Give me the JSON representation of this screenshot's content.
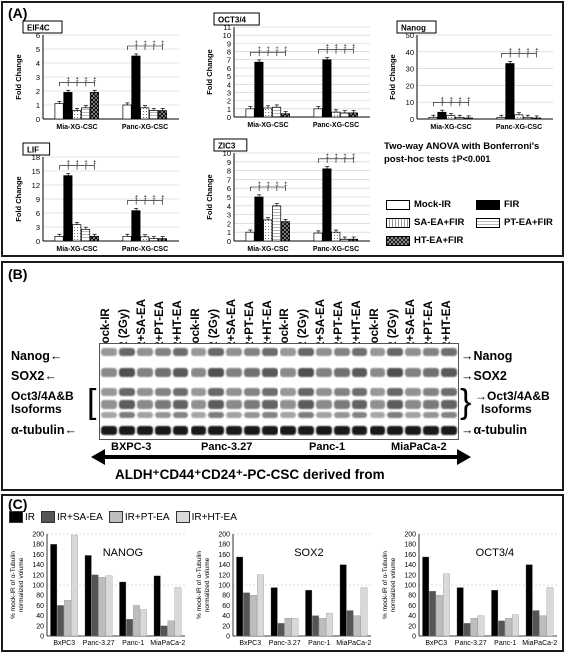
{
  "panelA": {
    "label": "(A)",
    "stat_note_line1": "Two-way ANOVA with Bonferroni's",
    "stat_note_line2": "post-hoc tests",
    "stat_note_line3": "‡P<0.001",
    "legend": [
      {
        "label": "Mock-IR",
        "color": "#ffffff",
        "pattern": "plain"
      },
      {
        "label": "FIR",
        "color": "#000000",
        "pattern": "plain"
      },
      {
        "label": "SA-EA+FIR",
        "color": "#ffffff",
        "pattern": "plain"
      },
      {
        "label": "PT-EA+FIR",
        "color": "#ffffff",
        "pattern": "plain"
      },
      {
        "label": "HT-EA+FIR",
        "color": "#555555",
        "pattern": "checker"
      }
    ]
  },
  "chart_data": [
    {
      "type": "bar",
      "title": "EIF4C",
      "ylabel": "Fold  Change",
      "ylim": [
        0,
        6
      ],
      "yticks": [
        0,
        1,
        2,
        3,
        4,
        5,
        6
      ],
      "categories": [
        "Mia-XG-CSC",
        "Panc-XG-CSC"
      ],
      "series": [
        {
          "name": "Mock-IR",
          "values": [
            1.1,
            1.0
          ]
        },
        {
          "name": "FIR",
          "values": [
            1.9,
            4.5
          ]
        },
        {
          "name": "SA-EA+FIR",
          "values": [
            0.6,
            0.8
          ]
        },
        {
          "name": "PT-EA+FIR",
          "values": [
            0.8,
            0.6
          ]
        },
        {
          "name": "HT-EA+FIR",
          "values": [
            1.9,
            0.6
          ]
        }
      ]
    },
    {
      "type": "bar",
      "title": "OCT3/4",
      "ylabel": "Fold  Change",
      "ylim": [
        0,
        11
      ],
      "yticks": [
        0,
        1,
        2,
        3,
        4,
        5,
        6,
        7,
        8,
        9,
        10,
        11
      ],
      "categories": [
        "Mia-XG-CSC",
        "Panc-XG-CSC"
      ],
      "series": [
        {
          "name": "Mock-IR",
          "values": [
            1.0,
            1.0
          ]
        },
        {
          "name": "FIR",
          "values": [
            6.7,
            7.0
          ]
        },
        {
          "name": "SA-EA+FIR",
          "values": [
            1.1,
            0.6
          ]
        },
        {
          "name": "PT-EA+FIR",
          "values": [
            1.2,
            0.5
          ]
        },
        {
          "name": "HT-EA+FIR",
          "values": [
            0.4,
            0.5
          ]
        }
      ]
    },
    {
      "type": "bar",
      "title": "Nanog",
      "ylabel": "Fold  Change",
      "ylim": [
        0,
        50
      ],
      "yticks": [
        0,
        10,
        20,
        30,
        40,
        50
      ],
      "categories": [
        "Mia-XG-CSC",
        "Panc-XG-CSC"
      ],
      "series": [
        {
          "name": "Mock-IR",
          "values": [
            1.0,
            1.0
          ]
        },
        {
          "name": "FIR",
          "values": [
            4.0,
            33.0
          ]
        },
        {
          "name": "SA-EA+FIR",
          "values": [
            2.0,
            2.5
          ]
        },
        {
          "name": "PT-EA+FIR",
          "values": [
            1.0,
            1.0
          ]
        },
        {
          "name": "HT-EA+FIR",
          "values": [
            0.6,
            0.6
          ]
        }
      ]
    },
    {
      "type": "bar",
      "title": "LIF",
      "ylabel": "Fold  Change",
      "ylim": [
        0,
        18
      ],
      "yticks": [
        0,
        3,
        6,
        9,
        12,
        15,
        18
      ],
      "categories": [
        "Mia-XG-CSC",
        "Panc-XG-CSC"
      ],
      "series": [
        {
          "name": "Mock-IR",
          "values": [
            1.0,
            1.0
          ]
        },
        {
          "name": "FIR",
          "values": [
            14.0,
            6.5
          ]
        },
        {
          "name": "SA-EA+FIR",
          "values": [
            3.5,
            0.9
          ]
        },
        {
          "name": "PT-EA+FIR",
          "values": [
            2.5,
            0.5
          ]
        },
        {
          "name": "HT-EA+FIR",
          "values": [
            1.0,
            0.5
          ]
        }
      ]
    },
    {
      "type": "bar",
      "title": "ZIC3",
      "ylabel": "Fold  Change",
      "ylim": [
        0,
        10
      ],
      "yticks": [
        0,
        1,
        2,
        3,
        4,
        5,
        6,
        7,
        8,
        9,
        10
      ],
      "categories": [
        "Mia-XG-CSC",
        "Panc-XG-CSC"
      ],
      "series": [
        {
          "name": "Mock-IR",
          "values": [
            1.0,
            0.9
          ]
        },
        {
          "name": "FIR",
          "values": [
            5.0,
            8.2
          ]
        },
        {
          "name": "SA-EA+FIR",
          "values": [
            2.4,
            1.0
          ]
        },
        {
          "name": "PT-EA+FIR",
          "values": [
            4.0,
            0.2
          ]
        },
        {
          "name": "HT-EA+FIR",
          "values": [
            2.2,
            0.2
          ]
        }
      ]
    },
    {
      "type": "bar",
      "title": "NANOG",
      "ylabel": "% mock-IR of α-Tubulin normalized volume",
      "ylim": [
        0,
        200
      ],
      "yticks": [
        0,
        20,
        40,
        60,
        80,
        100,
        120,
        140,
        160,
        180,
        200
      ],
      "categories": [
        "BxPC3",
        "Panc-3.27",
        "Panc-1",
        "MiaPaCa-2"
      ],
      "series": [
        {
          "name": "IR",
          "values": [
            180,
            158,
            106,
            118
          ]
        },
        {
          "name": "IR+SA-EA",
          "values": [
            60,
            120,
            33,
            20
          ]
        },
        {
          "name": "IR+PT-EA",
          "values": [
            70,
            115,
            60,
            30
          ]
        },
        {
          "name": "IR+HT-EA",
          "values": [
            198,
            118,
            52,
            95
          ]
        }
      ]
    },
    {
      "type": "bar",
      "title": "SOX2",
      "ylabel": "% mock-IR of α-Tubulin normalized volume",
      "ylim": [
        0,
        200
      ],
      "yticks": [
        0,
        20,
        40,
        60,
        80,
        100,
        120,
        140,
        160,
        180,
        200
      ],
      "categories": [
        "BxPC3",
        "Panc-3.27",
        "Panc-1",
        "MiaPaCa-2"
      ],
      "series": [
        {
          "name": "IR",
          "values": [
            155,
            95,
            90,
            140
          ]
        },
        {
          "name": "IR+SA-EA",
          "values": [
            85,
            25,
            40,
            50
          ]
        },
        {
          "name": "IR+PT-EA",
          "values": [
            80,
            35,
            35,
            40
          ]
        },
        {
          "name": "IR+HT-EA",
          "values": [
            120,
            35,
            45,
            95
          ]
        }
      ]
    },
    {
      "type": "bar",
      "title": "OCT3/4",
      "ylabel": "% mock-IR of α-Tubulin normalized volume",
      "ylim": [
        0,
        200
      ],
      "yticks": [
        0,
        20,
        40,
        60,
        80,
        100,
        120,
        140,
        160,
        180,
        200
      ],
      "categories": [
        "BxPC3",
        "Panc-3.27",
        "Panc-1",
        "MiaPaCa-2"
      ],
      "series": [
        {
          "name": "IR",
          "values": [
            155,
            95,
            90,
            140
          ]
        },
        {
          "name": "IR+SA-EA",
          "values": [
            88,
            25,
            30,
            50
          ]
        },
        {
          "name": "IR+PT-EA",
          "values": [
            80,
            35,
            35,
            40
          ]
        },
        {
          "name": "IR+HT-EA",
          "values": [
            122,
            40,
            42,
            95
          ]
        }
      ]
    }
  ],
  "panelB": {
    "label": "(B)",
    "lanes": [
      "Mock-IR",
      "IR (2Gy)",
      "IR+SA-EA",
      "IR+PT-EA",
      "IR+HT-EA"
    ],
    "left_labels": {
      "nanog": "Nanog",
      "sox2": "SOX2",
      "oct_line1": "Oct3/4A&B",
      "oct_line2": "Isoforms",
      "tubulin": "α-tubulin"
    },
    "right_labels": {
      "nanog": "Nanog",
      "sox2": "SOX2",
      "oct_line1": "Oct3/4A&B",
      "oct_line2": "Isoforms",
      "tubulin": "α-tubulin"
    },
    "cell_lines": [
      "BXPC-3",
      "Panc-3.27",
      "Panc-1",
      "MiaPaCa-2"
    ],
    "footer": "ALDH⁺CD44⁺CD24⁺-PC-CSC derived from"
  },
  "panelC": {
    "label": "(C)",
    "legend": [
      {
        "label": "IR",
        "color": "#000000"
      },
      {
        "label": "IR+SA-EA",
        "color": "#555555"
      },
      {
        "label": "IR+PT-EA",
        "color": "#bdbdbd"
      },
      {
        "label": "IR+HT-EA",
        "color": "#d9d9d9"
      }
    ]
  }
}
